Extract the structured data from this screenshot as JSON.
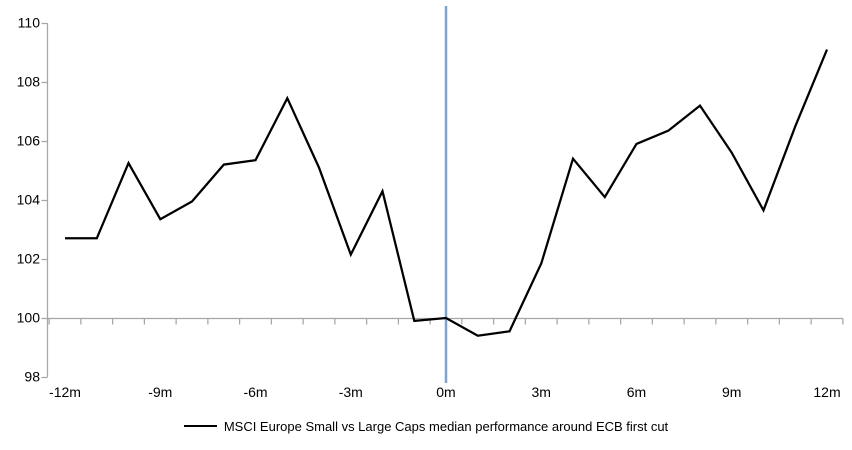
{
  "chart_data": {
    "type": "line",
    "title": "",
    "xlabel": "",
    "ylabel": "",
    "x_months": [
      -12,
      -11,
      -10,
      -9,
      -8,
      -7,
      -6,
      -5,
      -4,
      -3,
      -2,
      -1,
      0,
      1,
      2,
      3,
      4,
      5,
      6,
      7,
      8,
      9,
      10,
      11,
      12
    ],
    "series": [
      {
        "name": "MSCI Europe Small vs Large Caps median performance around ECB first cut",
        "color": "#000000",
        "values": [
          102.7,
          102.7,
          105.25,
          103.35,
          103.95,
          105.2,
          105.35,
          107.45,
          105.1,
          102.15,
          104.3,
          99.9,
          100.0,
          99.4,
          99.55,
          101.85,
          105.4,
          104.1,
          105.9,
          106.35,
          107.2,
          105.6,
          103.65,
          106.5,
          109.1
        ]
      }
    ],
    "x_tick_months": [
      -12,
      -9,
      -6,
      -3,
      0,
      3,
      6,
      9,
      12
    ],
    "x_tick_labels": [
      "-12m",
      "-9m",
      "-6m",
      "-3m",
      "0m",
      "3m",
      "6m",
      "9m",
      "12m"
    ],
    "y_ticks": [
      98,
      100,
      102,
      104,
      106,
      108,
      110
    ],
    "y_tick_labels": [
      "98",
      "100",
      "102",
      "104",
      "106",
      "108",
      "110"
    ],
    "ylim": [
      98,
      110.5
    ],
    "baseline_value": 100,
    "event_line": {
      "x_month": 0,
      "color": "#7AA5D2"
    },
    "colors": {
      "axis": "#A6A6A6",
      "baseline": "#A6A6A6",
      "series": "#000000"
    },
    "grid": false,
    "legend_position": "bottom"
  },
  "legend": {
    "label": "MSCI Europe Small vs Large Caps median performance around ECB first cut"
  }
}
